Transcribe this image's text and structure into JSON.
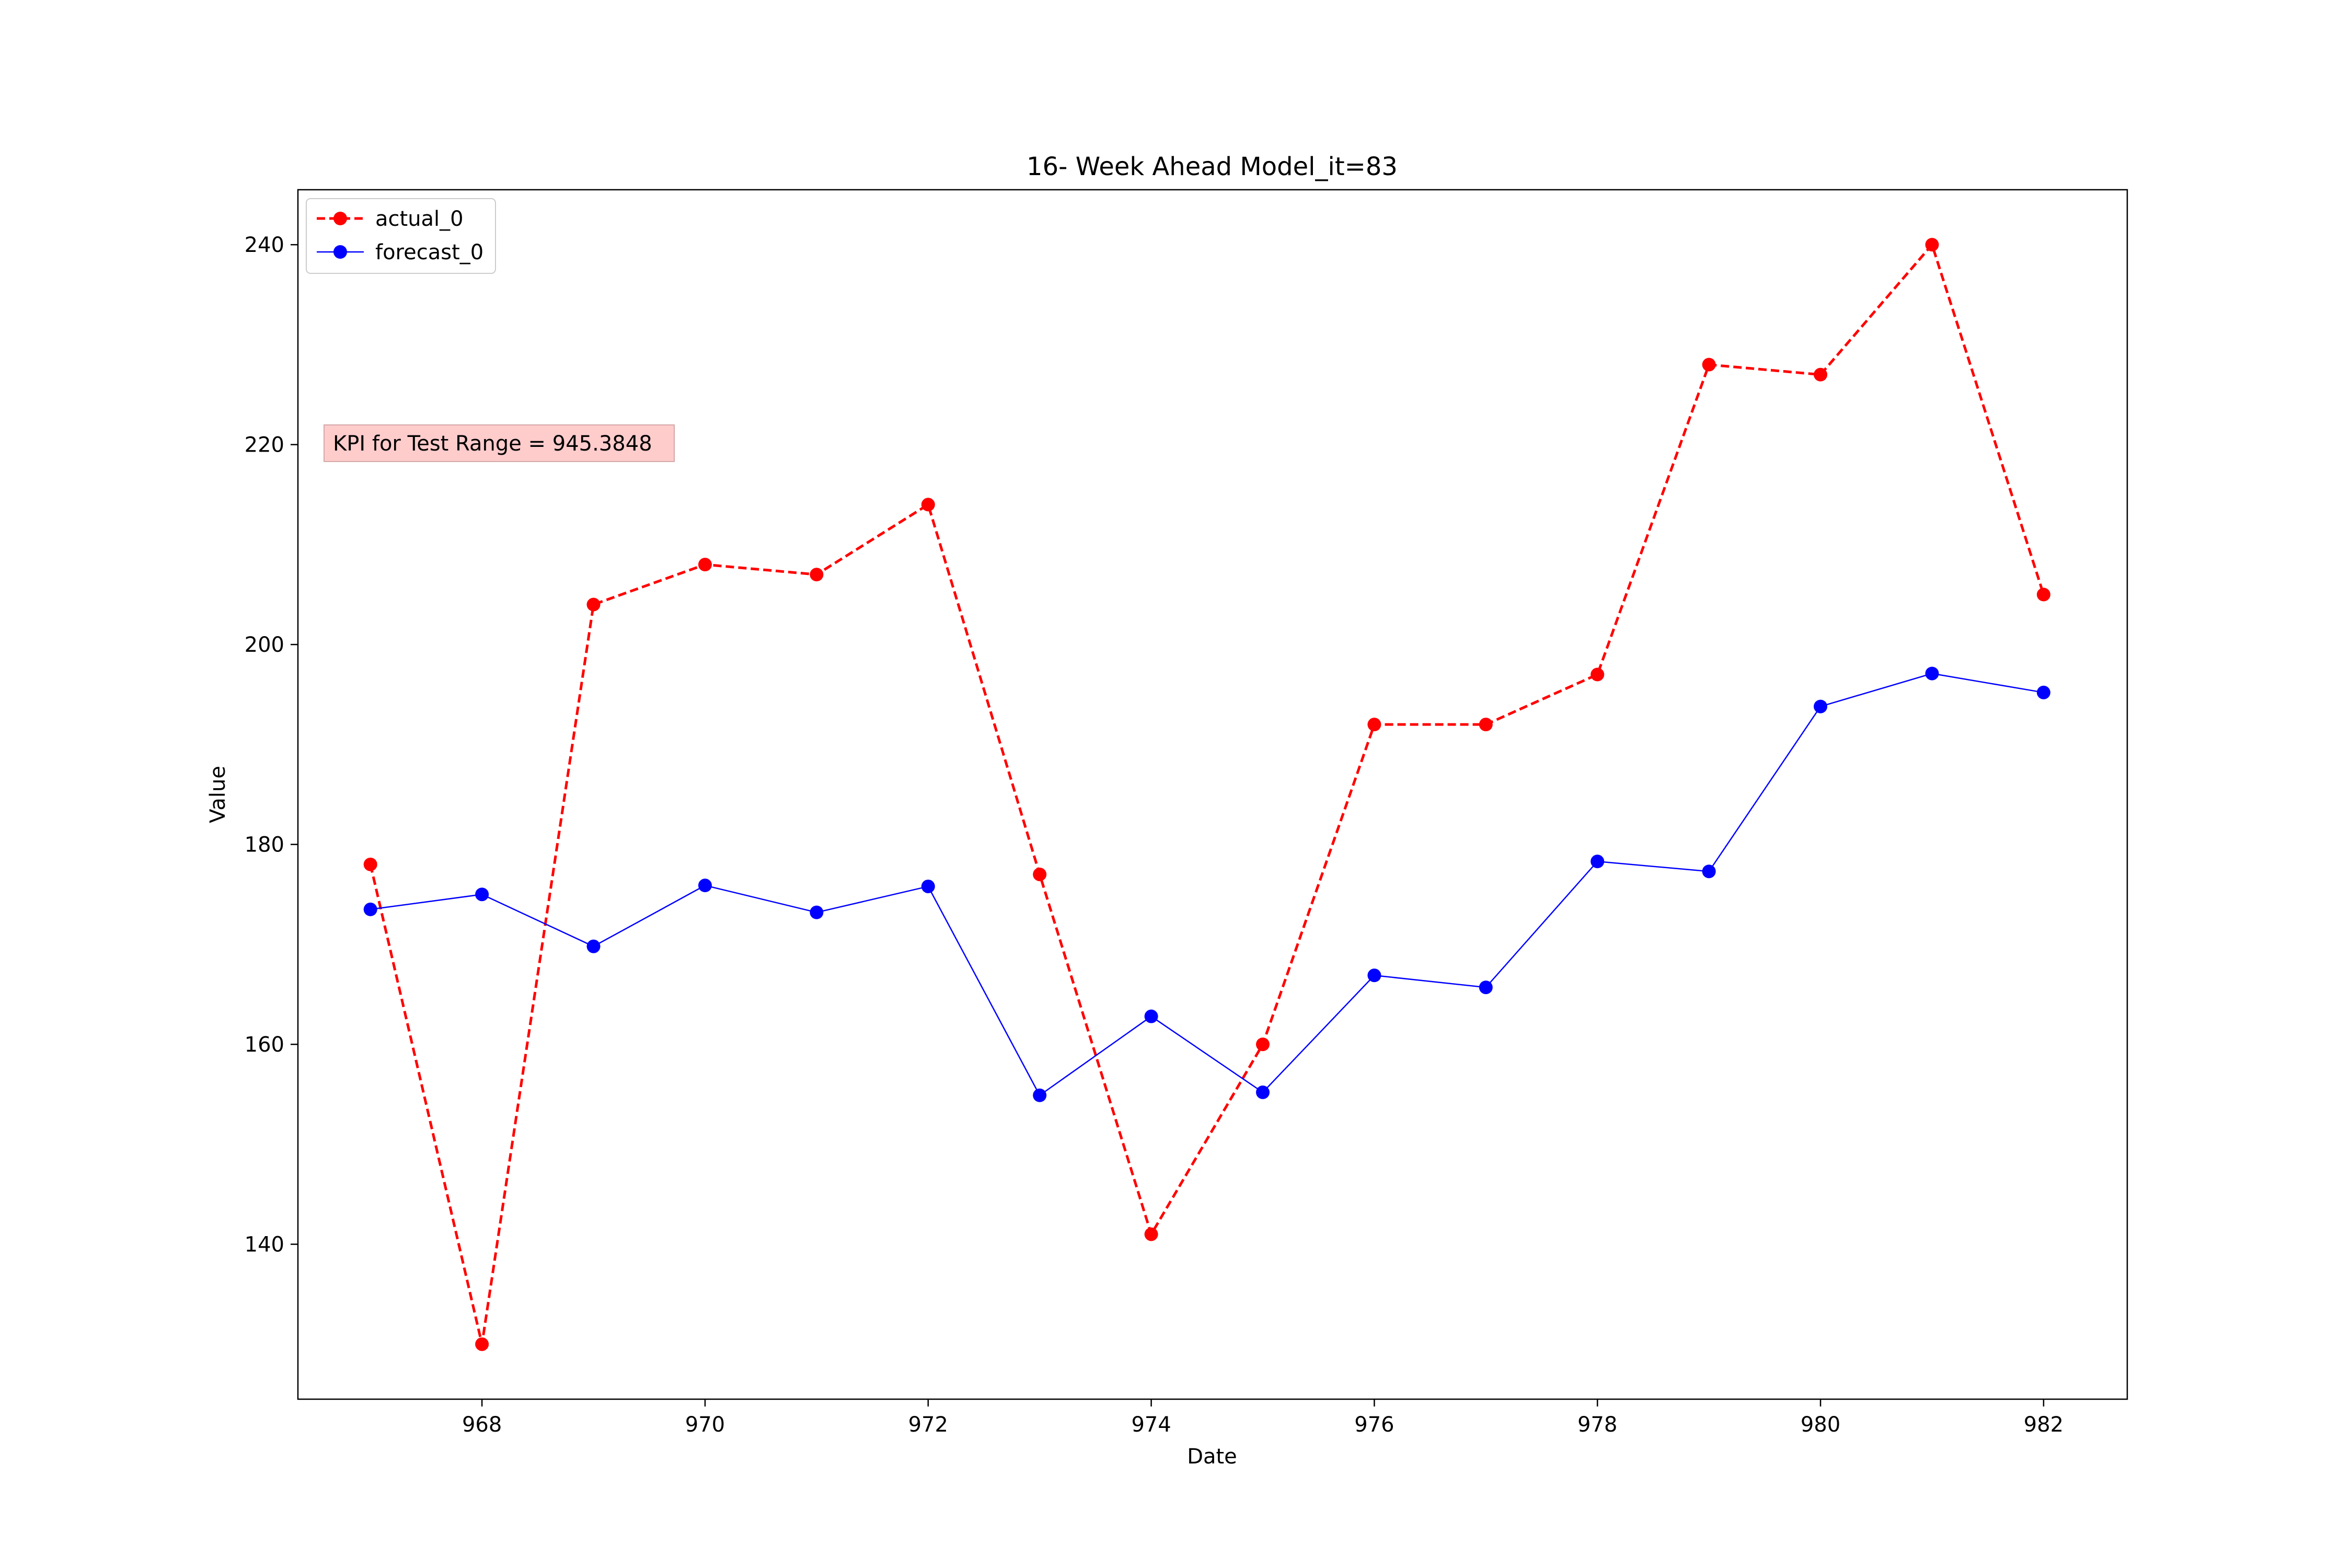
{
  "chart_data": {
    "type": "line",
    "title": "16- Week Ahead Model_it=83",
    "xlabel": "Date",
    "ylabel": "Value",
    "x": [
      967,
      968,
      969,
      970,
      971,
      972,
      973,
      974,
      975,
      976,
      977,
      978,
      979,
      980,
      981,
      982
    ],
    "xlim": [
      966.35,
      982.75
    ],
    "ylim": [
      124.5,
      245.5
    ],
    "xticks": [
      968,
      970,
      972,
      974,
      976,
      978,
      980,
      982
    ],
    "yticks": [
      140,
      160,
      180,
      200,
      220,
      240
    ],
    "grid": false,
    "legend_position": "upper-left",
    "series": [
      {
        "name": "actual_0",
        "color": "#ff0000",
        "line_style": "dashed",
        "marker": "circle",
        "values": [
          178,
          130,
          204,
          208,
          207,
          214,
          177,
          141,
          160,
          192,
          192,
          197,
          228,
          227,
          240,
          205
        ]
      },
      {
        "name": "forecast_0",
        "color": "#0000ff",
        "line_style": "solid",
        "marker": "circle",
        "values": [
          173.5,
          175.0,
          169.8,
          175.9,
          173.2,
          175.8,
          154.9,
          162.8,
          155.2,
          166.9,
          165.7,
          178.3,
          177.3,
          193.8,
          197.1,
          195.2
        ]
      }
    ],
    "annotations": [
      {
        "text": "KPI for Test Range = 945.3848",
        "box_color": "#ffcccc"
      }
    ]
  }
}
